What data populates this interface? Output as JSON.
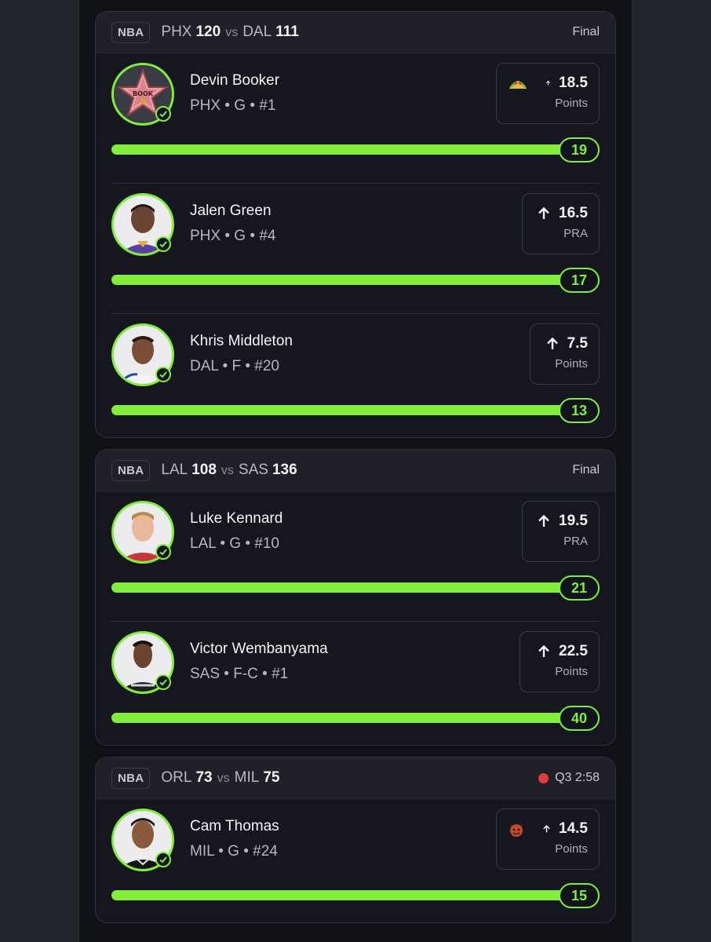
{
  "games": [
    {
      "league": "NBA",
      "away_team": "PHX",
      "away_score": "120",
      "vs": "vs",
      "home_team": "DAL",
      "home_score": "111",
      "status": "Final",
      "live": false,
      "picks": [
        {
          "name": "Devin Booker",
          "meta": "PHX • G • #1",
          "line": "18.5",
          "stat": "Points",
          "result": "19",
          "progress": 1.0,
          "direction": "over",
          "badge_icon": "taco-emoji",
          "avatar": "star-badge",
          "avatar_text": "BOOK"
        },
        {
          "name": "Jalen Green",
          "meta": "PHX • G • #4",
          "line": "16.5",
          "stat": "PRA",
          "result": "17",
          "progress": 1.0,
          "direction": "over",
          "badge_icon": "",
          "avatar": "player-photo"
        },
        {
          "name": "Khris Middleton",
          "meta": "DAL • F • #20",
          "line": "7.5",
          "stat": "Points",
          "result": "13",
          "progress": 1.0,
          "direction": "over",
          "badge_icon": "",
          "avatar": "player-photo"
        }
      ]
    },
    {
      "league": "NBA",
      "away_team": "LAL",
      "away_score": "108",
      "vs": "vs",
      "home_team": "SAS",
      "home_score": "136",
      "status": "Final",
      "live": false,
      "picks": [
        {
          "name": "Luke Kennard",
          "meta": "LAL • G • #10",
          "line": "19.5",
          "stat": "PRA",
          "result": "21",
          "progress": 1.0,
          "direction": "over",
          "badge_icon": "",
          "avatar": "player-photo"
        },
        {
          "name": "Victor Wembanyama",
          "meta": "SAS • F-C • #1",
          "line": "22.5",
          "stat": "Points",
          "result": "40",
          "progress": 1.0,
          "direction": "over",
          "badge_icon": "",
          "avatar": "player-photo"
        }
      ]
    },
    {
      "league": "NBA",
      "away_team": "ORL",
      "away_score": "73",
      "vs": "vs",
      "home_team": "MIL",
      "home_score": "75",
      "status": "Q3 2:58",
      "live": true,
      "picks": [
        {
          "name": "Cam Thomas",
          "meta": "MIL • G • #24",
          "line": "14.5",
          "stat": "Points",
          "result": "15",
          "progress": 1.0,
          "direction": "over",
          "badge_icon": "devil-emoji",
          "avatar": "player-photo"
        }
      ]
    }
  ],
  "colors": {
    "accent": "#80ee3a",
    "live": "#e53838",
    "background": "#101017",
    "card": "#15161e"
  }
}
